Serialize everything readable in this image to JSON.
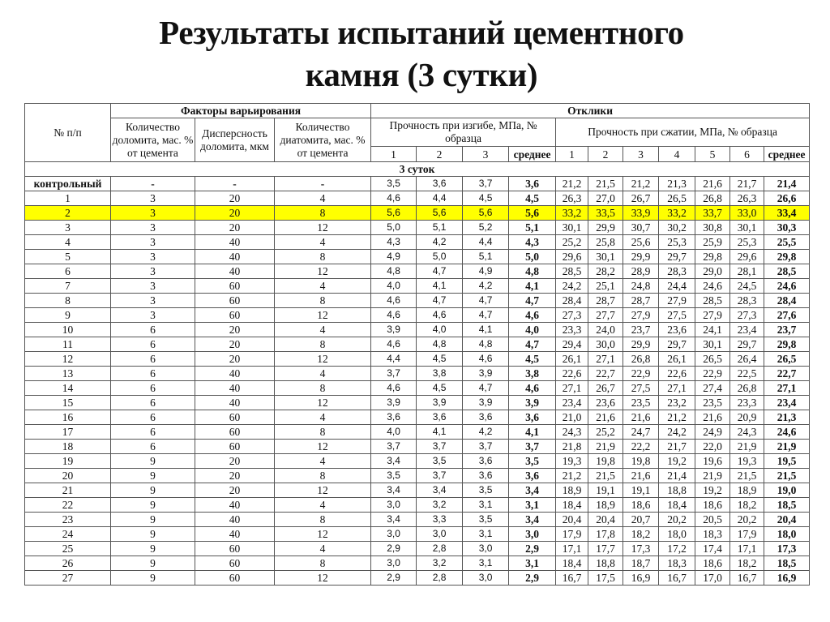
{
  "title": {
    "line1": "Результаты испытаний цементного",
    "line2": "камня (3 сутки)"
  },
  "highlight_color": "#ffff00",
  "header": {
    "num": "№ п/п",
    "factors": "Факторы варьирования",
    "responses": "Отклики",
    "dolomite_qty": "Количество доломита, мас. % от цемента",
    "dolomite_disp": "Дисперсность доломита, мкм",
    "diatomite_qty": "Количество диатомита, мас. % от цемента",
    "bend": "Прочность при изгибе, МПа, № образца",
    "compress": "Прочность при сжатии, МПа, № образца",
    "bend_cols": [
      "1",
      "2",
      "3",
      "среднее"
    ],
    "compress_cols": [
      "1",
      "2",
      "3",
      "4",
      "5",
      "6",
      "среднее"
    ]
  },
  "section": "3 суток",
  "highlighted_row": "2",
  "rows": [
    [
      "контрольный",
      "-",
      "-",
      "-",
      "3,5",
      "3,6",
      "3,7",
      "3,6",
      "21,2",
      "21,5",
      "21,2",
      "21,3",
      "21,6",
      "21,7",
      "21,4"
    ],
    [
      "1",
      "3",
      "20",
      "4",
      "4,6",
      "4,4",
      "4,5",
      "4,5",
      "26,3",
      "27,0",
      "26,7",
      "26,5",
      "26,8",
      "26,3",
      "26,6"
    ],
    [
      "2",
      "3",
      "20",
      "8",
      "5,6",
      "5,6",
      "5,6",
      "5,6",
      "33,2",
      "33,5",
      "33,9",
      "33,2",
      "33,7",
      "33,0",
      "33,4"
    ],
    [
      "3",
      "3",
      "20",
      "12",
      "5,0",
      "5,1",
      "5,2",
      "5,1",
      "30,1",
      "29,9",
      "30,7",
      "30,2",
      "30,8",
      "30,1",
      "30,3"
    ],
    [
      "4",
      "3",
      "40",
      "4",
      "4,3",
      "4,2",
      "4,4",
      "4,3",
      "25,2",
      "25,8",
      "25,6",
      "25,3",
      "25,9",
      "25,3",
      "25,5"
    ],
    [
      "5",
      "3",
      "40",
      "8",
      "4,9",
      "5,0",
      "5,1",
      "5,0",
      "29,6",
      "30,1",
      "29,9",
      "29,7",
      "29,8",
      "29,6",
      "29,8"
    ],
    [
      "6",
      "3",
      "40",
      "12",
      "4,8",
      "4,7",
      "4,9",
      "4,8",
      "28,5",
      "28,2",
      "28,9",
      "28,3",
      "29,0",
      "28,1",
      "28,5"
    ],
    [
      "7",
      "3",
      "60",
      "4",
      "4,0",
      "4,1",
      "4,2",
      "4,1",
      "24,2",
      "25,1",
      "24,8",
      "24,4",
      "24,6",
      "24,5",
      "24,6"
    ],
    [
      "8",
      "3",
      "60",
      "8",
      "4,6",
      "4,7",
      "4,7",
      "4,7",
      "28,4",
      "28,7",
      "28,7",
      "27,9",
      "28,5",
      "28,3",
      "28,4"
    ],
    [
      "9",
      "3",
      "60",
      "12",
      "4,6",
      "4,6",
      "4,7",
      "4,6",
      "27,3",
      "27,7",
      "27,9",
      "27,5",
      "27,9",
      "27,3",
      "27,6"
    ],
    [
      "10",
      "6",
      "20",
      "4",
      "3,9",
      "4,0",
      "4,1",
      "4,0",
      "23,3",
      "24,0",
      "23,7",
      "23,6",
      "24,1",
      "23,4",
      "23,7"
    ],
    [
      "11",
      "6",
      "20",
      "8",
      "4,6",
      "4,8",
      "4,8",
      "4,7",
      "29,4",
      "30,0",
      "29,9",
      "29,7",
      "30,1",
      "29,7",
      "29,8"
    ],
    [
      "12",
      "6",
      "20",
      "12",
      "4,4",
      "4,5",
      "4,6",
      "4,5",
      "26,1",
      "27,1",
      "26,8",
      "26,1",
      "26,5",
      "26,4",
      "26,5"
    ],
    [
      "13",
      "6",
      "40",
      "4",
      "3,7",
      "3,8",
      "3,9",
      "3,8",
      "22,6",
      "22,7",
      "22,9",
      "22,6",
      "22,9",
      "22,5",
      "22,7"
    ],
    [
      "14",
      "6",
      "40",
      "8",
      "4,6",
      "4,5",
      "4,7",
      "4,6",
      "27,1",
      "26,7",
      "27,5",
      "27,1",
      "27,4",
      "26,8",
      "27,1"
    ],
    [
      "15",
      "6",
      "40",
      "12",
      "3,9",
      "3,9",
      "3,9",
      "3,9",
      "23,4",
      "23,6",
      "23,5",
      "23,2",
      "23,5",
      "23,3",
      "23,4"
    ],
    [
      "16",
      "6",
      "60",
      "4",
      "3,6",
      "3,6",
      "3,6",
      "3,6",
      "21,0",
      "21,6",
      "21,6",
      "21,2",
      "21,6",
      "20,9",
      "21,3"
    ],
    [
      "17",
      "6",
      "60",
      "8",
      "4,0",
      "4,1",
      "4,2",
      "4,1",
      "24,3",
      "25,2",
      "24,7",
      "24,2",
      "24,9",
      "24,3",
      "24,6"
    ],
    [
      "18",
      "6",
      "60",
      "12",
      "3,7",
      "3,7",
      "3,7",
      "3,7",
      "21,8",
      "21,9",
      "22,2",
      "21,7",
      "22,0",
      "21,9",
      "21,9"
    ],
    [
      "19",
      "9",
      "20",
      "4",
      "3,4",
      "3,5",
      "3,6",
      "3,5",
      "19,3",
      "19,8",
      "19,8",
      "19,2",
      "19,6",
      "19,3",
      "19,5"
    ],
    [
      "20",
      "9",
      "20",
      "8",
      "3,5",
      "3,7",
      "3,6",
      "3,6",
      "21,2",
      "21,5",
      "21,6",
      "21,4",
      "21,9",
      "21,5",
      "21,5"
    ],
    [
      "21",
      "9",
      "20",
      "12",
      "3,4",
      "3,4",
      "3,5",
      "3,4",
      "18,9",
      "19,1",
      "19,1",
      "18,8",
      "19,2",
      "18,9",
      "19,0"
    ],
    [
      "22",
      "9",
      "40",
      "4",
      "3,0",
      "3,2",
      "3,1",
      "3,1",
      "18,4",
      "18,9",
      "18,6",
      "18,4",
      "18,6",
      "18,2",
      "18,5"
    ],
    [
      "23",
      "9",
      "40",
      "8",
      "3,4",
      "3,3",
      "3,5",
      "3,4",
      "20,4",
      "20,4",
      "20,7",
      "20,2",
      "20,5",
      "20,2",
      "20,4"
    ],
    [
      "24",
      "9",
      "40",
      "12",
      "3,0",
      "3,0",
      "3,1",
      "3,0",
      "17,9",
      "17,8",
      "18,2",
      "18,0",
      "18,3",
      "17,9",
      "18,0"
    ],
    [
      "25",
      "9",
      "60",
      "4",
      "2,9",
      "2,8",
      "3,0",
      "2,9",
      "17,1",
      "17,7",
      "17,3",
      "17,2",
      "17,4",
      "17,1",
      "17,3"
    ],
    [
      "26",
      "9",
      "60",
      "8",
      "3,0",
      "3,2",
      "3,1",
      "3,1",
      "18,4",
      "18,8",
      "18,7",
      "18,3",
      "18,6",
      "18,2",
      "18,5"
    ],
    [
      "27",
      "9",
      "60",
      "12",
      "2,9",
      "2,8",
      "3,0",
      "2,9",
      "16,7",
      "17,5",
      "16,9",
      "16,7",
      "17,0",
      "16,7",
      "16,9"
    ]
  ]
}
